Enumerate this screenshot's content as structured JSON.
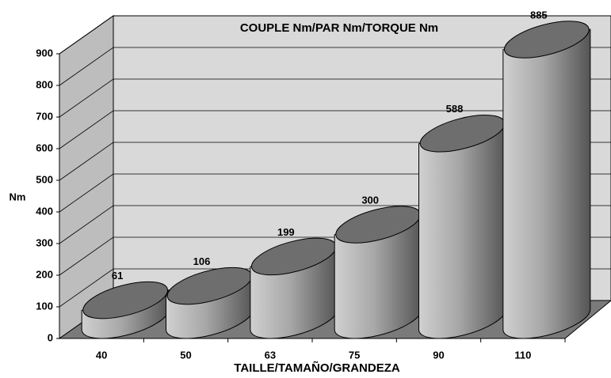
{
  "chart_data": {
    "type": "bar",
    "title": "COUPLE Nm/PAR Nm/TORQUE Nm",
    "y_label": "Nm",
    "x_label": "TAILLE/TAMAÑO/GRANDEZA",
    "categories": [
      "40",
      "50",
      "63",
      "75",
      "90",
      "110"
    ],
    "values": [
      61,
      106,
      199,
      300,
      588,
      885
    ],
    "color": "#a8a8a8",
    "ylim": [
      0,
      900
    ],
    "yticks": [
      0,
      100,
      200,
      300,
      400,
      500,
      600,
      700,
      800,
      900
    ],
    "grid": true
  }
}
